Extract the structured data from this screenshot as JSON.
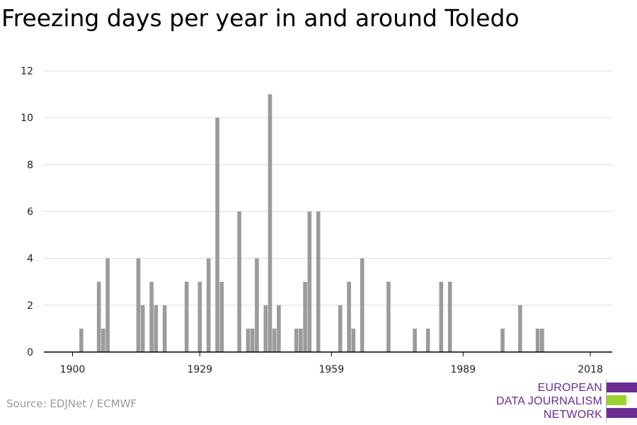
{
  "title": "Freezing days per year in and around Toledo",
  "source": "Source: EDJNet / ECMWF",
  "logo": {
    "line1": "EUROPEAN",
    "line2": "DATA JOURNALISM",
    "line3": "NETWORK",
    "color_primary": "#6b2c91",
    "color_accent": "#9bd12e"
  },
  "colors": {
    "bar": "#9b9b9b",
    "grid": "#dddddd",
    "axis": "#000000"
  },
  "chart_data": {
    "type": "bar",
    "title": "Freezing days per year in and around Toledo",
    "xlabel": "",
    "ylabel": "",
    "ylim": [
      0,
      12
    ],
    "yticks": [
      0,
      2,
      4,
      6,
      8,
      10,
      12
    ],
    "xlim": [
      1900,
      2018
    ],
    "xticks": [
      1900,
      1929,
      1959,
      1989,
      2018
    ],
    "grid": true,
    "x": [
      1902,
      1906,
      1907,
      1908,
      1915,
      1916,
      1918,
      1919,
      1921,
      1926,
      1929,
      1931,
      1933,
      1934,
      1938,
      1940,
      1941,
      1942,
      1944,
      1945,
      1946,
      1947,
      1951,
      1952,
      1953,
      1954,
      1956,
      1961,
      1963,
      1964,
      1966,
      1972,
      1978,
      1981,
      1984,
      1986,
      1998,
      2002,
      2006,
      2007
    ],
    "values": [
      1,
      3,
      1,
      4,
      4,
      2,
      3,
      2,
      2,
      3,
      3,
      4,
      10,
      3,
      6,
      1,
      1,
      4,
      2,
      11,
      1,
      2,
      1,
      1,
      3,
      6,
      6,
      2,
      3,
      1,
      4,
      3,
      1,
      1,
      3,
      3,
      1,
      2,
      1,
      1
    ]
  }
}
